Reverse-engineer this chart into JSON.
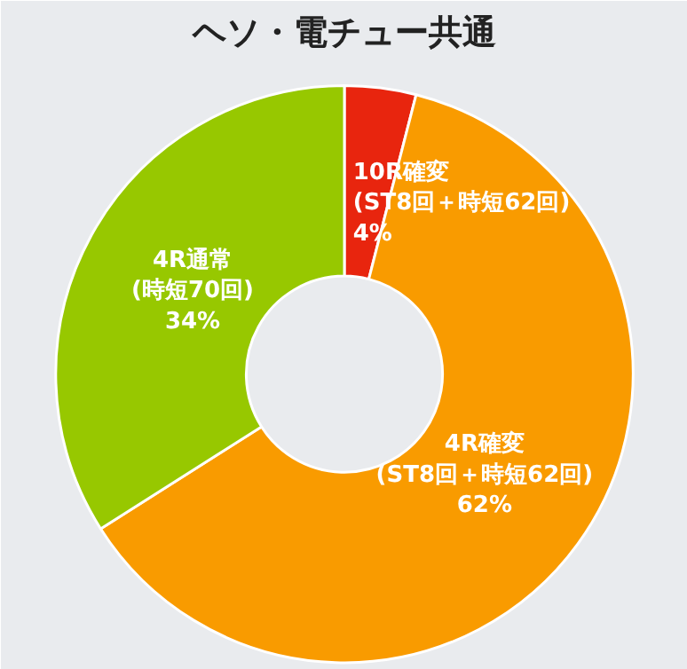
{
  "chart_data": {
    "type": "donut",
    "title": "ヘソ・電チュー共通",
    "categories": [
      "10R確変\n(ST8回＋時短62回)",
      "4R確変\n(ST8回＋時短62回)",
      "4R通常\n(時短70回)"
    ],
    "values": [
      4,
      62,
      34
    ],
    "colors": [
      "#e8250e",
      "#f99b00",
      "#97c800"
    ],
    "value_labels": [
      "4%",
      "62%",
      "34%"
    ]
  }
}
